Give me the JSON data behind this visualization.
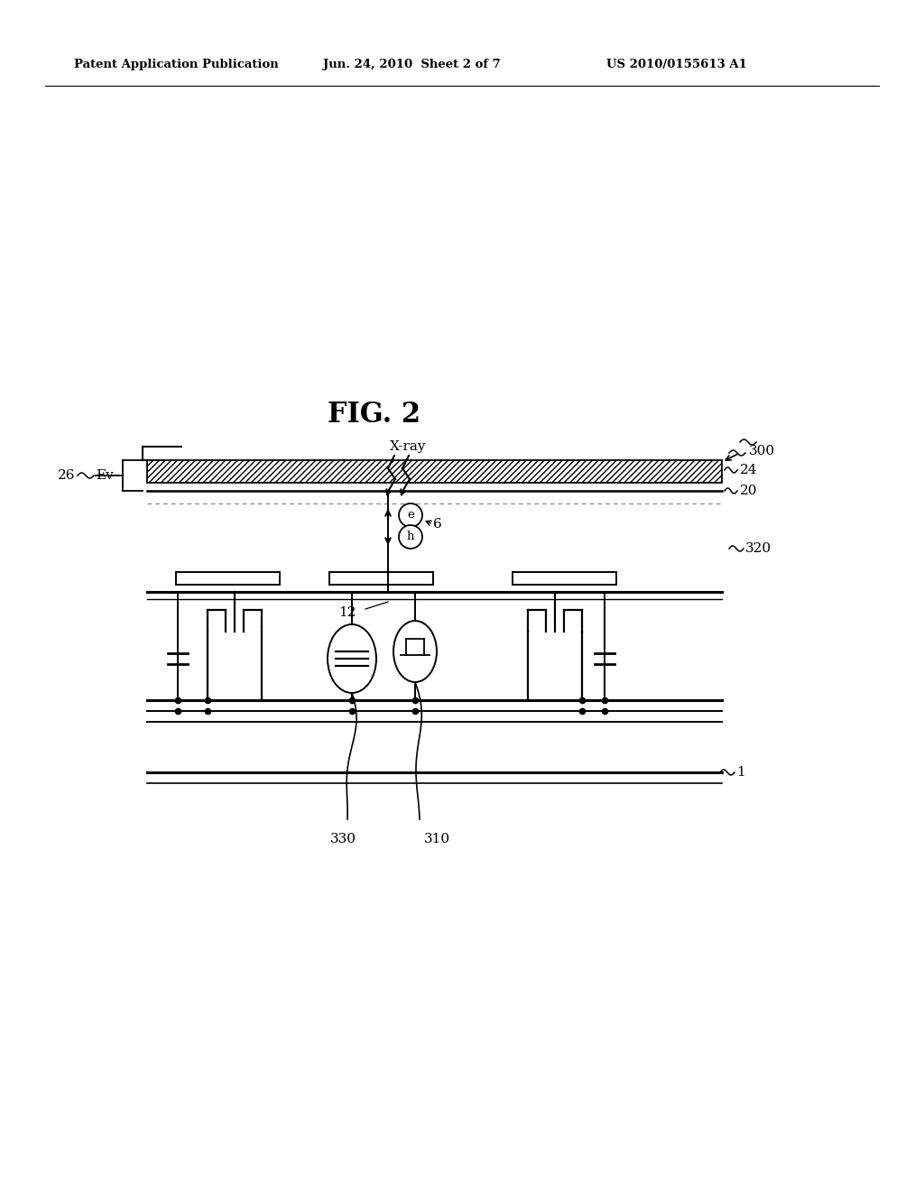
{
  "bg_color": "#ffffff",
  "fig_title": "FIG. 2",
  "header_left": "Patent Application Publication",
  "header_mid": "Jun. 24, 2010  Sheet 2 of 7",
  "header_right": "US 2010/0155613 A1",
  "label_300": "300",
  "label_24": "24",
  "label_20": "20",
  "label_26": "26",
  "label_Ev": "Ev",
  "label_320": "320",
  "label_12": "12",
  "label_6": "6",
  "label_1": "1",
  "label_330": "330",
  "label_310": "310",
  "label_xray": "X-ray"
}
